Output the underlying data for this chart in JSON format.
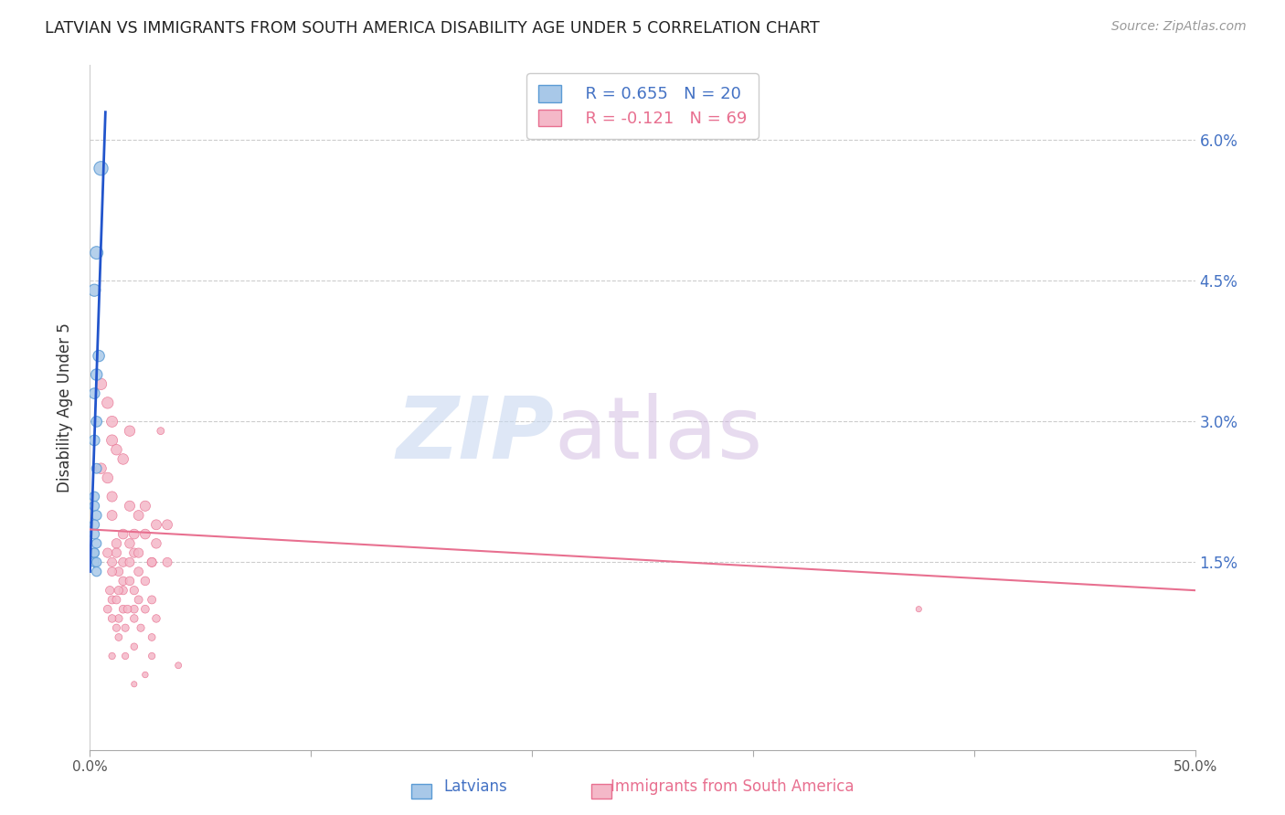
{
  "title": "LATVIAN VS IMMIGRANTS FROM SOUTH AMERICA DISABILITY AGE UNDER 5 CORRELATION CHART",
  "source": "Source: ZipAtlas.com",
  "ylabel": "Disability Age Under 5",
  "xmin": 0.0,
  "xmax": 0.5,
  "ymin": -0.005,
  "ymax": 0.068,
  "yticks": [
    0.0,
    0.015,
    0.03,
    0.045,
    0.06
  ],
  "ytick_labels": [
    "",
    "1.5%",
    "3.0%",
    "4.5%",
    "6.0%"
  ],
  "xticks": [
    0.0,
    0.1,
    0.2,
    0.3,
    0.4,
    0.5
  ],
  "xtick_labels": [
    "0.0%",
    "",
    "",
    "",
    "",
    "50.0%"
  ],
  "latvian_color": "#a8c8e8",
  "latvian_edge": "#5b9bd5",
  "sa_color": "#f4b8c8",
  "sa_edge": "#e87090",
  "trend_blue": "#2255cc",
  "trend_pink": "#e87090",
  "watermark_zip": "ZIP",
  "watermark_atlas": "atlas",
  "watermark_color_zip": "#c8d8f0",
  "watermark_color_atlas": "#d0b8e0",
  "legend_R1": "R = 0.655",
  "legend_N1": "N = 20",
  "legend_R2": "R = -0.121",
  "legend_N2": "N = 69",
  "latvian_x": [
    0.005,
    0.003,
    0.002,
    0.004,
    0.003,
    0.002,
    0.003,
    0.002,
    0.003,
    0.002,
    0.002,
    0.003,
    0.002,
    0.002,
    0.003,
    0.002,
    0.002,
    0.002,
    0.003,
    0.003
  ],
  "latvian_y": [
    0.057,
    0.048,
    0.044,
    0.037,
    0.035,
    0.033,
    0.03,
    0.028,
    0.025,
    0.022,
    0.021,
    0.02,
    0.019,
    0.018,
    0.017,
    0.016,
    0.016,
    0.015,
    0.015,
    0.014
  ],
  "latvian_sizes": [
    120,
    100,
    90,
    80,
    80,
    70,
    70,
    70,
    60,
    60,
    60,
    60,
    60,
    60,
    55,
    55,
    55,
    55,
    55,
    55
  ],
  "sa_x": [
    0.005,
    0.008,
    0.01,
    0.01,
    0.012,
    0.015,
    0.005,
    0.008,
    0.018,
    0.01,
    0.025,
    0.018,
    0.022,
    0.01,
    0.035,
    0.03,
    0.025,
    0.02,
    0.015,
    0.03,
    0.012,
    0.018,
    0.02,
    0.012,
    0.008,
    0.022,
    0.028,
    0.015,
    0.01,
    0.018,
    0.035,
    0.028,
    0.013,
    0.022,
    0.01,
    0.015,
    0.025,
    0.018,
    0.009,
    0.015,
    0.02,
    0.013,
    0.01,
    0.028,
    0.022,
    0.012,
    0.015,
    0.02,
    0.008,
    0.017,
    0.025,
    0.03,
    0.013,
    0.01,
    0.02,
    0.016,
    0.012,
    0.023,
    0.028,
    0.032,
    0.013,
    0.02,
    0.016,
    0.01,
    0.028,
    0.04,
    0.025,
    0.375,
    0.02
  ],
  "sa_y": [
    0.034,
    0.032,
    0.03,
    0.028,
    0.027,
    0.026,
    0.025,
    0.024,
    0.029,
    0.022,
    0.021,
    0.021,
    0.02,
    0.02,
    0.019,
    0.019,
    0.018,
    0.018,
    0.018,
    0.017,
    0.017,
    0.017,
    0.016,
    0.016,
    0.016,
    0.016,
    0.015,
    0.015,
    0.015,
    0.015,
    0.015,
    0.015,
    0.014,
    0.014,
    0.014,
    0.013,
    0.013,
    0.013,
    0.012,
    0.012,
    0.012,
    0.012,
    0.011,
    0.011,
    0.011,
    0.011,
    0.01,
    0.01,
    0.01,
    0.01,
    0.01,
    0.009,
    0.009,
    0.009,
    0.009,
    0.008,
    0.008,
    0.008,
    0.007,
    0.029,
    0.007,
    0.006,
    0.005,
    0.005,
    0.005,
    0.004,
    0.003,
    0.01,
    0.002
  ],
  "sa_sizes": [
    80,
    80,
    75,
    75,
    70,
    70,
    70,
    70,
    68,
    65,
    65,
    65,
    62,
    62,
    62,
    62,
    60,
    60,
    60,
    58,
    58,
    58,
    55,
    55,
    55,
    55,
    52,
    52,
    52,
    52,
    52,
    52,
    50,
    50,
    50,
    48,
    48,
    48,
    45,
    45,
    45,
    45,
    42,
    42,
    42,
    42,
    40,
    40,
    40,
    40,
    40,
    38,
    38,
    38,
    38,
    35,
    35,
    35,
    32,
    32,
    32,
    30,
    28,
    28,
    28,
    25,
    22,
    20,
    20
  ],
  "blue_trend_x0": 0.0,
  "blue_trend_y0": 0.014,
  "blue_trend_x1": 0.007,
  "blue_trend_y1": 0.063,
  "pink_trend_x0": 0.0,
  "pink_trend_y0": 0.0185,
  "pink_trend_x1": 0.5,
  "pink_trend_y1": 0.012
}
